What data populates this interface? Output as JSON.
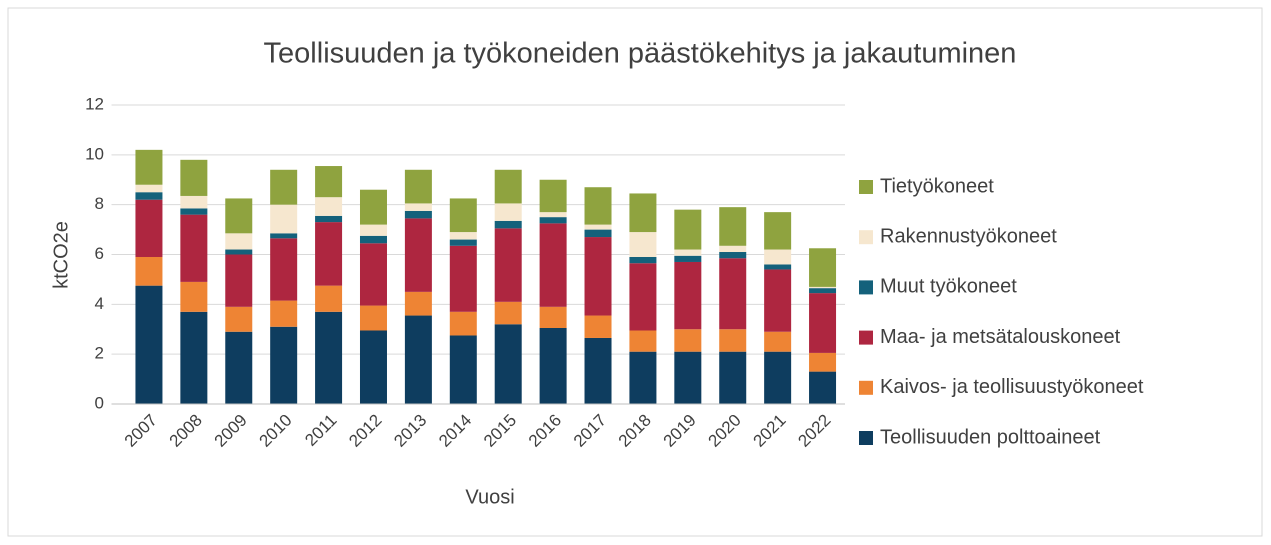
{
  "chart_data": {
    "type": "stacked_bar",
    "title": "Teollisuuden ja työkoneiden päästökehitys ja jakautuminen",
    "x_label": "Vuosi",
    "y_label": "ktCO2e",
    "categories": [
      "2007",
      "2008",
      "2009",
      "2010",
      "2011",
      "2012",
      "2013",
      "2014",
      "2015",
      "2016",
      "2017",
      "2018",
      "2019",
      "2020",
      "2021",
      "2022"
    ],
    "series": [
      {
        "name": "Teollisuuden polttoaineet",
        "color": "#0e3d5f",
        "values": [
          4.75,
          3.7,
          2.9,
          3.1,
          3.7,
          2.95,
          3.55,
          2.75,
          3.2,
          3.05,
          2.65,
          2.1,
          2.1,
          2.1,
          2.1,
          1.3
        ]
      },
      {
        "name": "Kaivos- ja teollisuustyökoneet",
        "color": "#ee8434",
        "values": [
          1.15,
          1.2,
          1.0,
          1.05,
          1.05,
          1.0,
          0.95,
          0.95,
          0.9,
          0.85,
          0.9,
          0.85,
          0.9,
          0.9,
          0.8,
          0.75
        ]
      },
      {
        "name": "Maa- ja metsätalouskoneet",
        "color": "#ae2640",
        "values": [
          2.3,
          2.7,
          2.1,
          2.5,
          2.55,
          2.5,
          2.95,
          2.65,
          2.95,
          3.35,
          3.15,
          2.7,
          2.7,
          2.85,
          2.5,
          2.4
        ]
      },
      {
        "name": "Muut työkoneet",
        "color": "#14617b",
        "values": [
          0.3,
          0.25,
          0.2,
          0.2,
          0.25,
          0.3,
          0.3,
          0.25,
          0.3,
          0.25,
          0.3,
          0.25,
          0.25,
          0.25,
          0.2,
          0.2
        ]
      },
      {
        "name": "Rakennustyökoneet",
        "color": "#f6e7cf",
        "values": [
          0.3,
          0.5,
          0.65,
          1.15,
          0.75,
          0.45,
          0.3,
          0.3,
          0.7,
          0.2,
          0.2,
          1.0,
          0.25,
          0.25,
          0.6,
          0.05
        ]
      },
      {
        "name": "Tietyökoneet",
        "color": "#8fa33f",
        "values": [
          1.4,
          1.45,
          1.4,
          1.4,
          1.25,
          1.4,
          1.35,
          1.35,
          1.35,
          1.3,
          1.5,
          1.55,
          1.6,
          1.55,
          1.5,
          1.55
        ]
      }
    ],
    "ylim": [
      0,
      12
    ],
    "yticks": [
      0,
      2,
      4,
      6,
      8,
      10,
      12
    ],
    "grid": true,
    "legend": "right"
  }
}
